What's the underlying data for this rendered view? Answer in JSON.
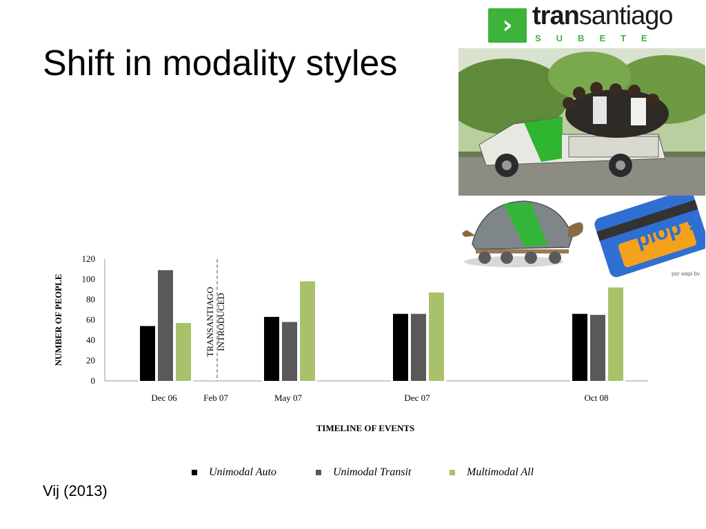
{
  "slide": {
    "title": "Shift in modality styles",
    "citation": "Vij (2013)"
  },
  "logo": {
    "icon": "chevron-right-icon",
    "brand_bold": "tran",
    "brand_light": "santiago",
    "tagline": "SUBETE",
    "color": "#3db33b"
  },
  "illustration": {
    "card_text": "plop !",
    "credit": "por wapi bv"
  },
  "chart_data": {
    "type": "bar",
    "categories": [
      "Dec 06",
      "Feb 07",
      "May 07",
      "Dec 07",
      "Oct 08"
    ],
    "series": [
      {
        "name": "Unimodal Auto",
        "color": "#000000",
        "values": [
          54,
          null,
          63,
          66,
          66
        ]
      },
      {
        "name": "Unimodal Transit",
        "color": "#595959",
        "values": [
          109,
          null,
          58,
          66,
          65
        ]
      },
      {
        "name": "Multimodal All",
        "color": "#a9c16a",
        "values": [
          57,
          null,
          98,
          87,
          92
        ]
      }
    ],
    "xlabel": "TIMELINE OF EVENTS",
    "ylabel": "NUMBER OF PEOPLE",
    "ylim": [
      0,
      120
    ],
    "yticks": [
      0,
      20,
      40,
      60,
      80,
      100,
      120
    ],
    "annotation": {
      "category": "Feb 07",
      "line1": "TRANSANTIAGO",
      "line2": "INTRODUCED"
    },
    "legend_position": "bottom",
    "grid": false
  }
}
